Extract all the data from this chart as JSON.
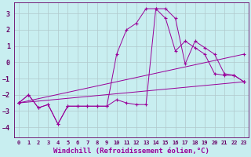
{
  "background_color": "#c8eef0",
  "grid_color": "#b0c8cc",
  "line_color": "#990099",
  "xlabel": "Windchill (Refroidissement éolien,°C)",
  "xlabel_fontsize": 6.5,
  "xlim": [
    -0.5,
    23.5
  ],
  "ylim": [
    -4.6,
    3.7
  ],
  "xticks": [
    0,
    1,
    2,
    3,
    4,
    5,
    6,
    7,
    8,
    9,
    10,
    11,
    12,
    13,
    14,
    15,
    16,
    17,
    18,
    19,
    20,
    21,
    22,
    23
  ],
  "yticks": [
    -4,
    -3,
    -2,
    -1,
    0,
    1,
    2,
    3
  ],
  "series1_x": [
    0,
    1,
    2,
    3,
    4,
    5,
    6,
    7,
    8,
    9,
    10,
    11,
    12,
    13,
    14,
    15,
    16,
    17,
    18,
    19,
    20,
    21,
    22,
    23
  ],
  "series1_y": [
    -2.5,
    -2.0,
    -2.8,
    -2.6,
    -3.8,
    -2.7,
    -2.7,
    -2.7,
    -2.7,
    -2.7,
    -2.3,
    -2.5,
    -2.6,
    -2.6,
    3.3,
    3.3,
    2.7,
    -0.1,
    1.3,
    0.9,
    0.5,
    -0.7,
    -0.8,
    -1.2
  ],
  "series2_x": [
    0,
    1,
    2,
    3,
    4,
    5,
    6,
    7,
    8,
    9,
    10,
    11,
    12,
    13,
    14,
    15,
    16,
    17,
    18,
    19,
    20,
    21,
    22,
    23
  ],
  "series2_y": [
    -2.5,
    -2.0,
    -2.8,
    -2.6,
    -3.8,
    -2.7,
    -2.7,
    -2.7,
    -2.7,
    -2.7,
    0.5,
    2.0,
    2.4,
    3.3,
    3.3,
    2.7,
    0.7,
    1.3,
    0.9,
    0.5,
    -0.7,
    -0.8,
    -0.8,
    -1.2
  ],
  "series3_x": [
    0,
    23
  ],
  "series3_y": [
    -2.5,
    0.5
  ],
  "series4_x": [
    0,
    23
  ],
  "series4_y": [
    -2.5,
    -1.2
  ]
}
